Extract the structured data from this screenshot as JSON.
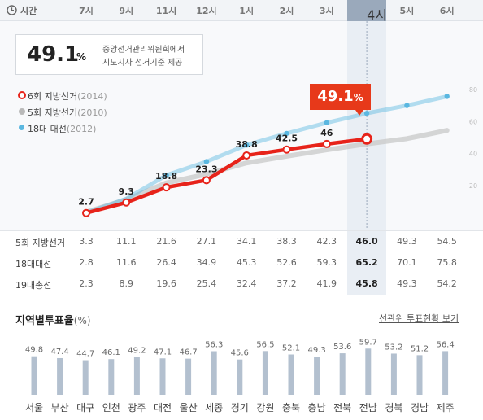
{
  "header": {
    "time_label": "시간",
    "hours": [
      "7시",
      "9시",
      "11시",
      "12시",
      "1시",
      "2시",
      "3시",
      "4시",
      "5시",
      "6시"
    ],
    "current_hour_index": 7
  },
  "info_box": {
    "percent": "49.1",
    "unit": "%",
    "line1": "중앙선거관리위원회에서",
    "line2": "시도지사 선거기준 제공"
  },
  "callout": {
    "value": "49.1",
    "unit": "%"
  },
  "legend": [
    {
      "label": "6회 지방선거",
      "year": "(2014)",
      "color": "#e7231a",
      "style": "ring"
    },
    {
      "label": "5회 지방선거",
      "year": "(2010)",
      "color": "#b9b9b9",
      "style": "dot"
    },
    {
      "label": "18대 대선",
      "year": "(2012)",
      "color": "#5ab7e0",
      "style": "dot"
    }
  ],
  "chart_data": [
    {
      "type": "line",
      "x": [
        "7시",
        "9시",
        "11시",
        "12시",
        "1시",
        "2시",
        "3시",
        "4시",
        "5시",
        "6시"
      ],
      "ylim": [
        0,
        100
      ],
      "yticks": [
        "20",
        "40",
        "60",
        "80"
      ],
      "series": [
        {
          "name": "6회 지방선거(2014)",
          "color": "#e7231a",
          "values": [
            2.7,
            9.3,
            18.8,
            23.3,
            38.8,
            42.5,
            46,
            49.1,
            null,
            null
          ],
          "labels": [
            "2.7",
            "9.3",
            "18.8",
            "23.3",
            "38.8",
            "42.5",
            "46",
            null,
            null,
            null
          ]
        },
        {
          "name": "5회 지방선거(2010)",
          "color": "#c8c8c8",
          "values": [
            3.3,
            11.1,
            21.6,
            27.1,
            34.1,
            38.3,
            42.3,
            46.0,
            49.3,
            54.5
          ]
        },
        {
          "name": "18대 대선(2012)",
          "color": "#5ab7e0",
          "values": [
            2.8,
            11.6,
            26.4,
            34.9,
            45.3,
            52.6,
            59.3,
            65.2,
            70.1,
            75.8
          ]
        }
      ]
    },
    {
      "type": "bar",
      "title": "지역별투표율",
      "unit": "(%)",
      "categories": [
        "서울",
        "부산",
        "대구",
        "인천",
        "광주",
        "대전",
        "울산",
        "세종",
        "경기",
        "강원",
        "충북",
        "충남",
        "전북",
        "전남",
        "경북",
        "경남",
        "제주"
      ],
      "values": [
        49.8,
        47.4,
        44.7,
        46.1,
        49.2,
        47.1,
        46.7,
        56.3,
        45.6,
        56.5,
        52.1,
        49.3,
        53.6,
        59.7,
        53.2,
        51.2,
        56.4
      ],
      "color": "#b3c0cf"
    }
  ],
  "table": {
    "rows": [
      {
        "label": "5회 지방선거",
        "values": [
          "3.3",
          "11.1",
          "21.6",
          "27.1",
          "34.1",
          "38.3",
          "42.3",
          "46.0",
          "49.3",
          "54.5"
        ]
      },
      {
        "label": "18대대선",
        "values": [
          "2.8",
          "11.6",
          "26.4",
          "34.9",
          "45.3",
          "52.6",
          "59.3",
          "65.2",
          "70.1",
          "75.8"
        ]
      },
      {
        "label": "19대총선",
        "values": [
          "2.3",
          "8.9",
          "19.6",
          "25.4",
          "32.4",
          "37.2",
          "41.9",
          "45.8",
          "49.3",
          "54.2"
        ]
      }
    ]
  },
  "regional": {
    "title": "지역별투표율",
    "unit": "(%)",
    "link": "선관위 투표현황 보기"
  }
}
